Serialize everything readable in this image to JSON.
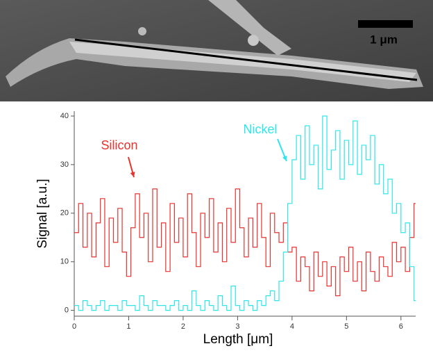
{
  "image": {
    "scale_bar": "1 μm"
  },
  "chart_data": {
    "type": "step",
    "xlabel": "Length [μm]",
    "ylabel": "Signal [a.u.]",
    "annotations": [
      "Silicon",
      "Nickel"
    ],
    "x": [
      0,
      0.08,
      0.16,
      0.24,
      0.32,
      0.4,
      0.48,
      0.56,
      0.64,
      0.72,
      0.8,
      0.88,
      0.96,
      1.04,
      1.12,
      1.2,
      1.28,
      1.36,
      1.44,
      1.52,
      1.6,
      1.68,
      1.76,
      1.84,
      1.92,
      2,
      2.08,
      2.16,
      2.24,
      2.32,
      2.4,
      2.48,
      2.56,
      2.64,
      2.72,
      2.8,
      2.88,
      2.96,
      3.04,
      3.12,
      3.2,
      3.28,
      3.36,
      3.44,
      3.52,
      3.6,
      3.68,
      3.76,
      3.84,
      3.92,
      4,
      4.08,
      4.16,
      4.24,
      4.32,
      4.4,
      4.48,
      4.56,
      4.64,
      4.72,
      4.8,
      4.88,
      4.96,
      5.04,
      5.12,
      5.2,
      5.28,
      5.36,
      5.44,
      5.52,
      5.6,
      5.68,
      5.76,
      5.84,
      5.92,
      6,
      6.08,
      6.16,
      6.24
    ],
    "series": [
      {
        "name": "Silicon",
        "color": "#e8322e",
        "values": [
          16,
          22,
          13,
          20,
          11,
          18,
          23,
          9,
          19,
          14,
          21,
          12,
          7,
          17,
          24,
          15,
          20,
          10,
          25,
          13,
          18,
          8,
          22,
          14,
          19,
          11,
          24,
          16,
          9,
          20,
          15,
          23,
          12,
          18,
          10,
          21,
          14,
          25,
          17,
          11,
          19,
          13,
          22,
          15,
          9,
          20,
          16,
          14,
          18,
          12,
          13,
          6,
          11,
          9,
          4,
          12,
          7,
          10,
          5,
          9,
          3,
          11,
          8,
          13,
          6,
          10,
          4,
          12,
          8,
          6,
          11,
          9,
          7,
          14,
          10,
          13,
          8,
          15,
          22
        ]
      },
      {
        "name": "Nickel",
        "color": "#2ee6ea",
        "values": [
          1,
          0,
          2,
          1,
          0,
          1,
          2,
          0,
          1,
          1,
          0,
          2,
          1,
          1,
          0,
          3,
          1,
          0,
          2,
          1,
          1,
          0,
          1,
          2,
          0,
          1,
          0,
          4,
          1,
          0,
          2,
          1,
          0,
          3,
          1,
          0,
          5,
          1,
          0,
          2,
          1,
          0,
          2,
          1,
          3,
          4,
          2,
          6,
          12,
          22,
          31,
          36,
          27,
          38,
          30,
          34,
          25,
          40,
          29,
          33,
          37,
          27,
          35,
          30,
          39,
          28,
          34,
          31,
          36,
          26,
          30,
          24,
          27,
          20,
          22,
          16,
          18,
          9,
          2
        ]
      }
    ],
    "xlim": [
      0,
      6.27
    ],
    "ylim": [
      -1.2,
      41
    ],
    "xticks": [
      0,
      1,
      2,
      3,
      4,
      5,
      6
    ],
    "yticks": [
      0,
      10,
      20,
      30,
      40
    ]
  }
}
